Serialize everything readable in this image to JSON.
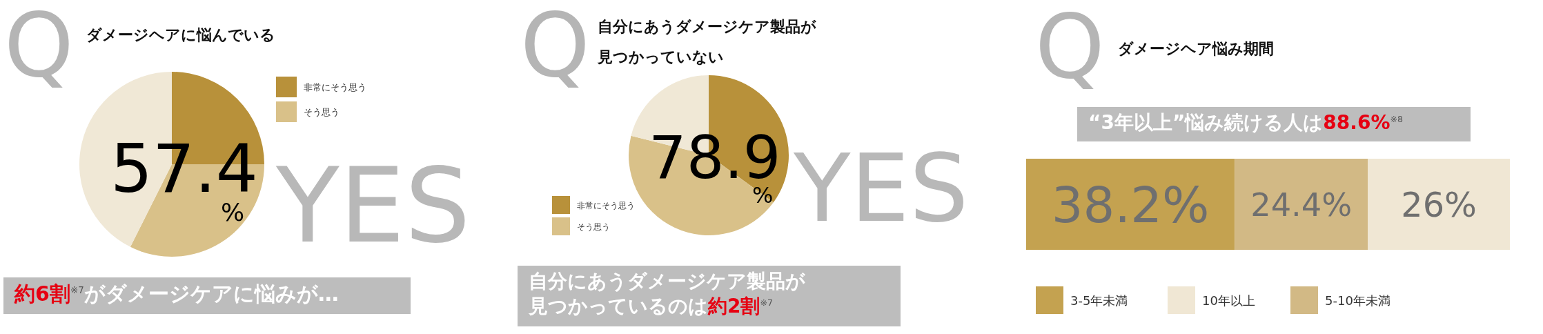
{
  "chart_data": [
    {
      "type": "pie",
      "title": "ダメージヘアに悩んでいる",
      "categories": [
        "非常にそう思う",
        "そう思う",
        null
      ],
      "values": [
        25.0,
        32.4,
        42.6
      ],
      "colors": [
        "#b8913a",
        "#d9c189",
        "#f0e8d6"
      ],
      "legend": "top right",
      "annotations": [
        "Q",
        "YES",
        "57.4",
        "%",
        "約6割",
        "※7",
        "がダメージケアに悩みが…"
      ]
    },
    {
      "type": "pie",
      "title": "自分にあうダメージケア製品が見つかっていない",
      "categories": [
        "非常にそう思う",
        "そう思う",
        null
      ],
      "values": [
        35.0,
        43.9,
        21.1
      ],
      "colors": [
        "#b8913a",
        "#d9c189",
        "#f0e8d6"
      ],
      "legend": "bottom left",
      "annotations": [
        "Q",
        "YES",
        "78.9",
        "%",
        "自分にあうダメージケア製品が",
        "見つかっているのは",
        "約2割",
        "※7"
      ]
    },
    {
      "type": "bar",
      "orientation": "horizontal",
      "stacked": true,
      "title": "ダメージヘア悩み期間",
      "categories": [
        null
      ],
      "legend": "bottom",
      "series": [
        {
          "name": "3-5年未満",
          "color": "#c4a250",
          "values": [
            38.2
          ],
          "value_labels": [
            "38.2%"
          ]
        },
        {
          "name": "5-10年未満",
          "color": "#d2b985",
          "values": [
            24.4
          ],
          "value_labels": [
            "24.4%"
          ]
        },
        {
          "name": "10年以上",
          "color": "#f0e7d4",
          "values": [
            26
          ],
          "value_labels": [
            "26%"
          ]
        }
      ],
      "annotations": [
        "Q",
        "“3年以上”悩み続ける人は",
        "88.6%",
        "※8"
      ]
    }
  ]
}
